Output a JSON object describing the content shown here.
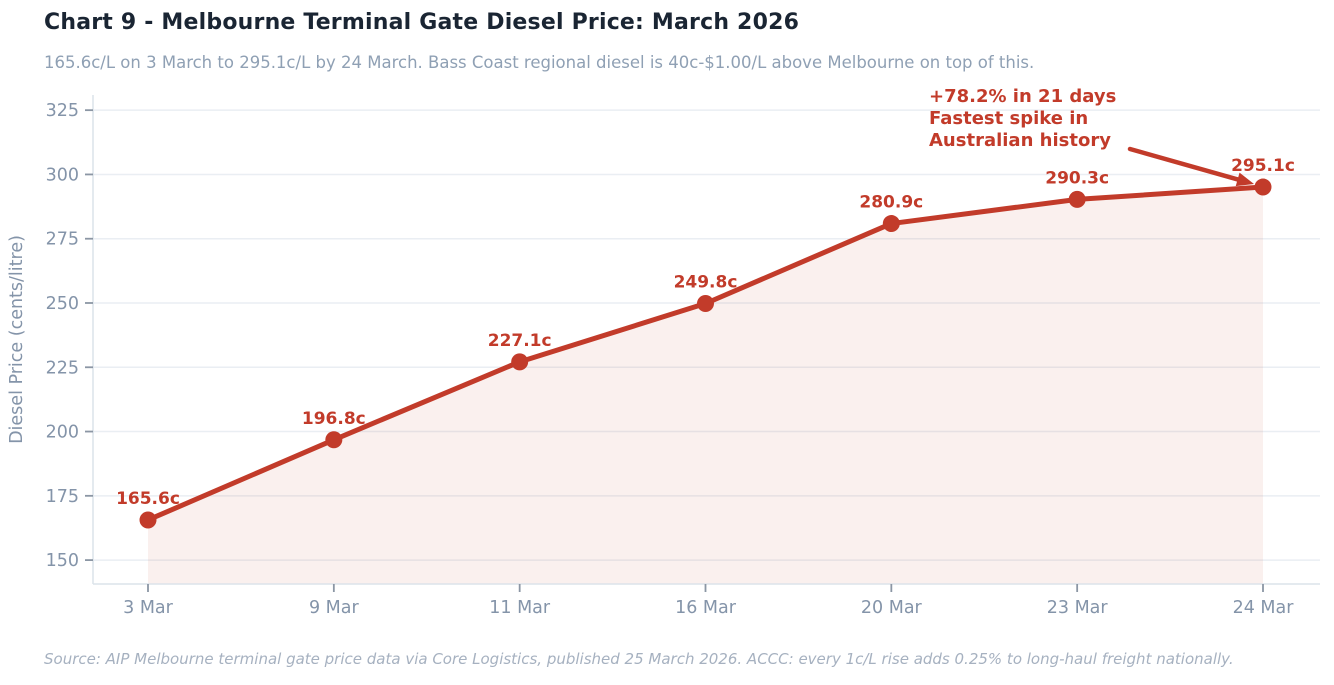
{
  "header": {
    "title": "Chart 9 - Melbourne Terminal Gate Diesel Price: March 2026",
    "subtitle": "165.6c/L on 3 March to 295.1c/L by 24 March. Bass Coast regional diesel is 40c-$1.00/L above Melbourne on top of this."
  },
  "annotation": {
    "lines": [
      "+78.2% in 21 days",
      "Fastest spike in",
      "Australian history"
    ],
    "arrow_target_category": "24 Mar"
  },
  "footer": {
    "source": "Source: AIP Melbourne terminal gate price data via Core Logistics, published 25 March 2026. ACCC: every 1c/L rise adds 0.25% to long-haul freight nationally."
  },
  "chart_data": {
    "type": "line",
    "title": "Chart 9 - Melbourne Terminal Gate Diesel Price: March 2026",
    "categories": [
      "3 Mar",
      "9 Mar",
      "11 Mar",
      "16 Mar",
      "20 Mar",
      "23 Mar",
      "24 Mar"
    ],
    "values": [
      165.6,
      196.8,
      227.1,
      249.8,
      280.9,
      290.3,
      295.1
    ],
    "point_labels": [
      "165.6c",
      "196.8c",
      "227.1c",
      "249.8c",
      "280.9c",
      "290.3c",
      "295.1c"
    ],
    "xlabel": "",
    "ylabel": "Diesel Price (cents/litre)",
    "yticks": [
      150,
      175,
      200,
      225,
      250,
      275,
      300,
      325
    ],
    "ylim": [
      140.7,
      330.9
    ],
    "grid": true,
    "legend": false,
    "area_fill": true,
    "markers": true,
    "colors": {
      "line": "#c23b2a",
      "marker": "#c23b2a",
      "point_label": "#c23b2a",
      "annotation": "#c23b2a",
      "area_fill": "#c23b2a",
      "area_fill_opacity": 0.08,
      "title": "#1a2533",
      "subtitle": "#8fa0b4",
      "axis_text": "#8494a9",
      "grid": "#eaeef3",
      "spine": "#dce3ea",
      "tick": "#8b96a4",
      "background": "#ffffff"
    }
  }
}
